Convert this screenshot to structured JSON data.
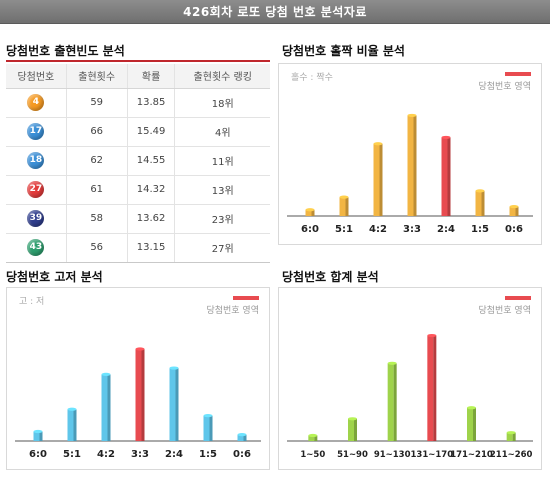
{
  "banner": "426회차 로또 당첨 번호 분석자료",
  "sections": {
    "frequency": "당첨번호 출현빈도 분석",
    "oddeven": "당첨번호 홀짝 비율 분석",
    "highlow": "당첨번호 고저 분석",
    "sum": "당첨번호 합계 분석"
  },
  "table": {
    "headers": [
      "당첨번호",
      "출현횟수",
      "확률",
      "출현횟수 랭킹"
    ],
    "rows": [
      {
        "ball": "4",
        "color": "#f59a23",
        "count": "59",
        "prob": "13.85",
        "rank": "18위"
      },
      {
        "ball": "17",
        "color": "#3b8fd6",
        "count": "66",
        "prob": "15.49",
        "rank": "4위"
      },
      {
        "ball": "18",
        "color": "#3b8fd6",
        "count": "62",
        "prob": "14.55",
        "rank": "11위"
      },
      {
        "ball": "27",
        "color": "#e23b3b",
        "count": "61",
        "prob": "14.32",
        "rank": "13위"
      },
      {
        "ball": "39",
        "color": "#2f3d8c",
        "count": "58",
        "prob": "13.62",
        "rank": "23위"
      },
      {
        "ball": "43",
        "color": "#2e9e6e",
        "count": "56",
        "prob": "13.15",
        "rank": "27위"
      }
    ]
  },
  "legend_winning": "당첨번호 영역",
  "colors": {
    "highlight": "#e84b50",
    "oddeven": "#f2b543",
    "highlow": "#5fc6ea",
    "sum": "#9fd34b"
  },
  "chart_data": [
    {
      "type": "bar",
      "legend_note": "홀수 : 짝수",
      "categories": [
        "6:0",
        "5:1",
        "4:2",
        "3:3",
        "2:4",
        "1:5",
        "0:6"
      ],
      "values": [
        2,
        6,
        23,
        32,
        25,
        8,
        3
      ],
      "highlight_index": 4,
      "ylim": [
        0,
        35
      ]
    },
    {
      "type": "bar",
      "legend_note": "고 : 저",
      "categories": [
        "6:0",
        "5:1",
        "4:2",
        "3:3",
        "2:4",
        "1:5",
        "0:6"
      ],
      "values": [
        3,
        10,
        21,
        29,
        23,
        8,
        2
      ],
      "highlight_index": 3,
      "ylim": [
        0,
        35
      ]
    },
    {
      "type": "bar",
      "legend_note": "",
      "categories": [
        "1~50",
        "51~90",
        "91~130",
        "131~170",
        "171~210",
        "211~260"
      ],
      "values": [
        2,
        8,
        28,
        38,
        12,
        3
      ],
      "highlight_index": 3,
      "ylim": [
        0,
        40
      ]
    }
  ]
}
